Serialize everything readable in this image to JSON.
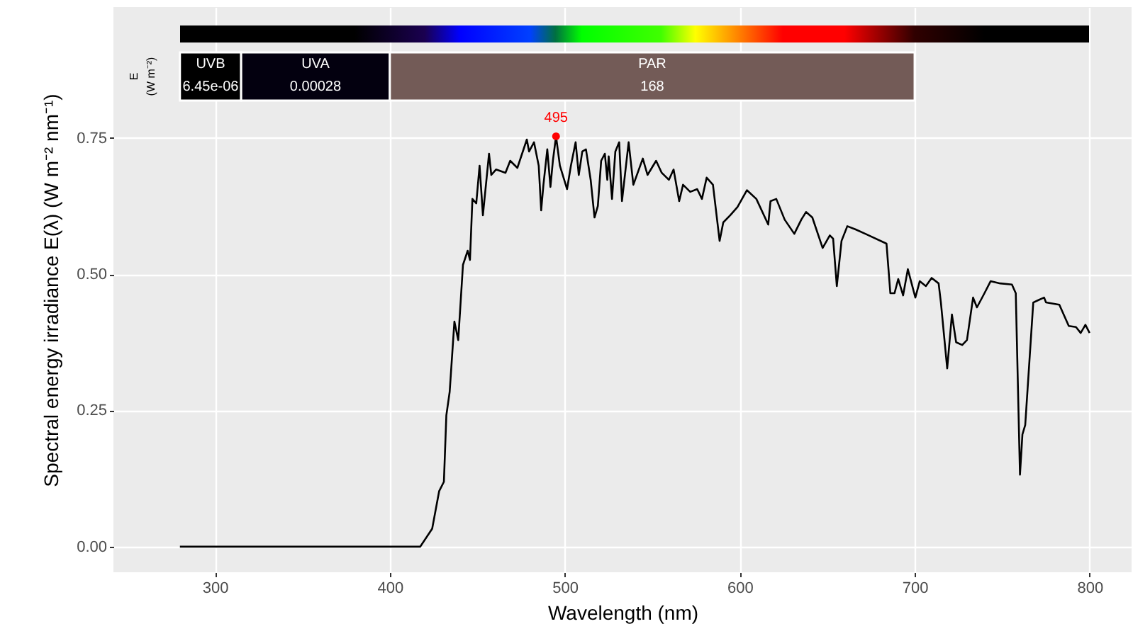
{
  "chart_data": {
    "type": "line",
    "xlabel": "Wavelength (nm)",
    "ylabel": "Spectral energy irradiance E(λ)  (W m⁻² nm⁻¹)",
    "xlim": [
      242,
      824
    ],
    "ylim": [
      -0.047,
      0.99
    ],
    "xticks": [
      300,
      400,
      500,
      600,
      700,
      800
    ],
    "yticks": [
      {
        "value": 0,
        "label": "0.00"
      },
      {
        "value": 0.25,
        "label": "0.25"
      },
      {
        "value": 0.5,
        "label": "0.50"
      },
      {
        "value": 0.75,
        "label": "0.75"
      }
    ],
    "grid": true,
    "bands": [
      {
        "axis": "x",
        "from": 280,
        "to": 315,
        "label": "UVB\n6.45e-06",
        "color": "#000000"
      },
      {
        "axis": "x",
        "from": 315,
        "to": 400,
        "label": "UVA\n0.00028",
        "color": "#03000f"
      },
      {
        "axis": "x",
        "from": 400,
        "to": 700,
        "label": "PAR\n168",
        "color": "#735b57"
      }
    ],
    "annotations": [
      "E\n(W m⁻²)",
      {
        "text": "495",
        "x": 495,
        "y": 0.753
      }
    ],
    "series": [
      {
        "color": "#000000",
        "x": [
          280,
          417.4,
          424.2,
          428.2,
          430.9,
          432.3,
          434.2,
          436.9,
          439.1,
          441.8,
          444.5,
          445.8,
          447.2,
          449.4,
          451.3,
          453.2,
          456.7,
          458,
          460.7,
          466.1,
          468.8,
          472.9,
          475.6,
          478.3,
          479.6,
          482.4,
          485.1,
          486.5,
          487.8,
          490,
          491.8,
          493.2,
          495,
          497.2,
          501.3,
          503.5,
          506.2,
          508,
          510,
          512.1,
          514.8,
          517,
          518.9,
          520.8,
          522.9,
          524.3,
          525.1,
          527,
          528.9,
          531.1,
          532.7,
          536.5,
          539.2,
          544.6,
          547.3,
          552.2,
          555.4,
          559.5,
          562.2,
          565.4,
          567.6,
          571.7,
          575.7,
          578.4,
          581.1,
          584.7,
          588.5,
          590.6,
          594.6,
          598.7,
          604.1,
          609.5,
          616.3,
          617.6,
          620.9,
          625.7,
          631.2,
          635.2,
          637.9,
          641.5,
          647.4,
          651.5,
          653.4,
          655.5,
          658.2,
          661.5,
          666.3,
          671.8,
          683.9,
          686.1,
          688.5,
          690.6,
          693.4,
          696.1,
          700.4,
          702.9,
          706.4,
          709.7,
          713.7,
          715,
          718.6,
          721.3,
          723.7,
          727.2,
          729.9,
          733.4,
          735.6,
          739.9,
          743.4,
          748.9,
          755.6,
          757.8,
          760.2,
          761.6,
          763.2,
          767.8,
          770.5,
          774,
          775.1,
          782.7,
          788.1,
          792.2,
          794.9,
          797.6,
          800
        ],
        "values": [
          0,
          0,
          0.033,
          0.102,
          0.119,
          0.241,
          0.284,
          0.413,
          0.379,
          0.517,
          0.543,
          0.526,
          0.638,
          0.63,
          0.699,
          0.608,
          0.721,
          0.682,
          0.692,
          0.686,
          0.708,
          0.695,
          0.721,
          0.747,
          0.725,
          0.742,
          0.699,
          0.617,
          0.664,
          0.729,
          0.66,
          0.708,
          0.753,
          0.699,
          0.656,
          0.699,
          0.742,
          0.682,
          0.725,
          0.729,
          0.673,
          0.604,
          0.625,
          0.708,
          0.721,
          0.673,
          0.716,
          0.638,
          0.725,
          0.742,
          0.634,
          0.742,
          0.664,
          0.712,
          0.682,
          0.708,
          0.686,
          0.673,
          0.692,
          0.634,
          0.664,
          0.651,
          0.656,
          0.638,
          0.677,
          0.664,
          0.561,
          0.595,
          0.608,
          0.623,
          0.654,
          0.638,
          0.591,
          0.634,
          0.638,
          0.6,
          0.574,
          0.6,
          0.614,
          0.604,
          0.548,
          0.571,
          0.565,
          0.478,
          0.561,
          0.588,
          0.582,
          0.574,
          0.556,
          0.465,
          0.465,
          0.491,
          0.461,
          0.509,
          0.457,
          0.487,
          0.478,
          0.493,
          0.483,
          0.448,
          0.327,
          0.426,
          0.375,
          0.37,
          0.379,
          0.457,
          0.439,
          0.465,
          0.487,
          0.483,
          0.481,
          0.465,
          0.132,
          0.206,
          0.223,
          0.448,
          0.452,
          0.457,
          0.448,
          0.444,
          0.405,
          0.403,
          0.392,
          0.407,
          0.392
        ]
      }
    ]
  }
}
